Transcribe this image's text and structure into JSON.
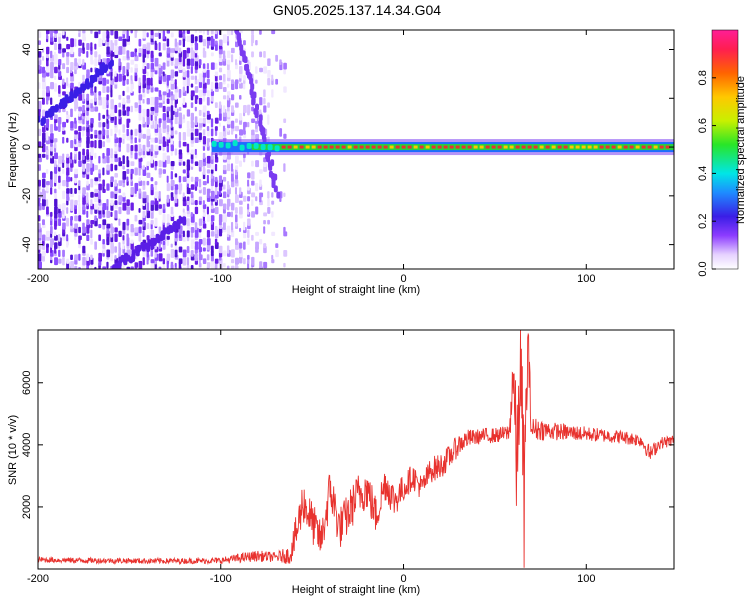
{
  "title": "GN05.2025.137.14.34.G04",
  "colors": {
    "snr_line": "#e8322e",
    "frame": "#000000",
    "spec_purple": "#6a1ee6",
    "spec_light": "#c9b2ff",
    "spec_peak": "#e8322e"
  },
  "chart_data": [
    {
      "type": "heatmap",
      "title": "GN05.2025.137.14.34.G04",
      "xlabel": "Height of straight line (km)",
      "ylabel": "Frequency (Hz)",
      "xlim": [
        -200,
        148
      ],
      "ylim": [
        -50,
        48
      ],
      "xticks": [
        -200,
        -100,
        0,
        100
      ],
      "xtick_labels": [
        "-200",
        "-100",
        "0",
        "100"
      ],
      "yticks": [
        -40,
        -20,
        0,
        20,
        40
      ],
      "ytick_labels": [
        "-40",
        "-20",
        "0",
        "20",
        "40"
      ],
      "colorbar": {
        "label": "Normalized spectral amplitude",
        "range": [
          0,
          1
        ],
        "ticks": [
          0.0,
          0.2,
          0.4,
          0.6,
          0.8
        ],
        "tick_labels": [
          "0.0",
          "0.2",
          "0.4",
          "0.6",
          "0.8"
        ],
        "colormap": "white-purple-blue-cyan-green-yellow-orange-red-magenta"
      },
      "features": {
        "noise_region_x": [
          -200,
          -65
        ],
        "carrier_frequency_hz": 0,
        "carrier_start_x": -105,
        "diagonal_ridge": [
          [
            -200,
            10
          ],
          [
            -160,
            35
          ]
        ],
        "lower_ridge": [
          [
            -160,
            -50
          ],
          [
            -120,
            -30
          ]
        ]
      },
      "grid": false
    },
    {
      "type": "line",
      "xlabel": "Height of straight line (km)",
      "ylabel": "SNR (10 * v/v)",
      "xlim": [
        -200,
        148
      ],
      "ylim": [
        0,
        7700
      ],
      "xticks": [
        -200,
        -100,
        0,
        100
      ],
      "xtick_labels": [
        "-200",
        "-100",
        "0",
        "100"
      ],
      "yticks": [
        2000,
        4000,
        6000
      ],
      "ytick_labels": [
        "2000",
        "4000",
        "6000"
      ],
      "series": [
        {
          "x": [
            -200,
            -180,
            -160,
            -140,
            -120,
            -100,
            -90,
            -80,
            -70,
            -62,
            -58,
            -55,
            -50,
            -45,
            -40,
            -35,
            -30,
            -25,
            -20,
            -15,
            -10,
            -5,
            0,
            5,
            10,
            15,
            20,
            25,
            30,
            35,
            40,
            45,
            50,
            55,
            58,
            60,
            62,
            64,
            66,
            68,
            70,
            75,
            80,
            90,
            100,
            110,
            120,
            130,
            135,
            140,
            148
          ],
          "values": [
            300,
            280,
            270,
            260,
            260,
            270,
            350,
            420,
            380,
            450,
            1300,
            2200,
            1500,
            900,
            2600,
            1300,
            1800,
            2400,
            2600,
            1700,
            2800,
            2200,
            2600,
            3000,
            2600,
            3200,
            3300,
            3600,
            4000,
            4200,
            4250,
            4300,
            4300,
            4350,
            4400,
            6500,
            3000,
            7000,
            2000,
            7400,
            4500,
            4500,
            4450,
            4400,
            4350,
            4300,
            4250,
            4150,
            3700,
            4050,
            4150
          ],
          "noise_amplitude": [
            90,
            90,
            90,
            90,
            90,
            100,
            150,
            180,
            160,
            300,
            700,
            700,
            700,
            600,
            800,
            700,
            700,
            700,
            700,
            650,
            600,
            550,
            450,
            420,
            420,
            420,
            420,
            400,
            350,
            300,
            250,
            250,
            250,
            250,
            300,
            1500,
            2000,
            1800,
            2400,
            1200,
            400,
            350,
            300,
            260,
            240,
            220,
            220,
            220,
            260,
            200,
            180
          ]
        }
      ],
      "grid": false
    }
  ]
}
